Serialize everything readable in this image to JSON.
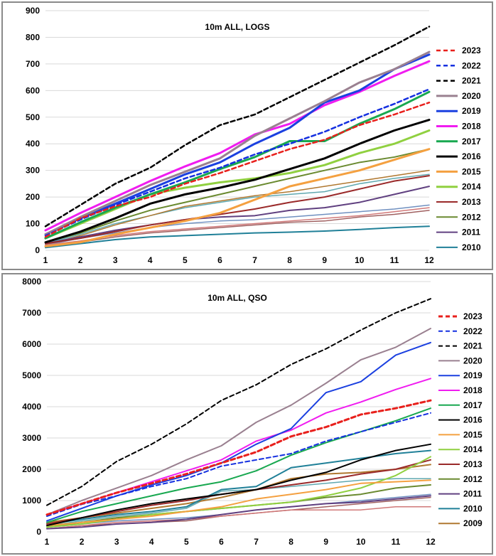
{
  "chart_data": [
    {
      "type": "line",
      "title": "10m ALL, LOGS",
      "x": [
        1,
        2,
        3,
        4,
        5,
        6,
        7,
        8,
        9,
        10,
        11,
        12
      ],
      "ylim": [
        0,
        900
      ],
      "yticks": [
        0,
        100,
        200,
        300,
        400,
        500,
        600,
        700,
        800,
        900
      ],
      "grid": "horizontal",
      "legend_position": "right",
      "series": [
        {
          "name": "2023",
          "color": "#e8201c",
          "dash": "dashed",
          "width": 2.5,
          "values": [
            50,
            120,
            165,
            200,
            250,
            290,
            335,
            380,
            415,
            470,
            510,
            555
          ]
        },
        {
          "name": "2022",
          "color": "#1530e0",
          "dash": "dashed",
          "width": 2.5,
          "values": [
            55,
            115,
            170,
            220,
            270,
            310,
            360,
            400,
            445,
            500,
            550,
            605
          ]
        },
        {
          "name": "2021",
          "color": "#000000",
          "dash": "dashed",
          "width": 2.5,
          "values": [
            90,
            170,
            250,
            310,
            395,
            470,
            510,
            575,
            640,
            705,
            770,
            840
          ]
        },
        {
          "name": "2020",
          "color": "#9a8090",
          "dash": "solid",
          "width": 3,
          "values": [
            60,
            125,
            185,
            245,
            295,
            345,
            430,
            495,
            560,
            630,
            680,
            745
          ]
        },
        {
          "name": "2019",
          "color": "#1b40e0",
          "dash": "solid",
          "width": 3,
          "values": [
            60,
            120,
            175,
            230,
            285,
            330,
            400,
            460,
            555,
            600,
            680,
            735
          ]
        },
        {
          "name": "2018",
          "color": "#f01cf0",
          "dash": "solid",
          "width": 3,
          "values": [
            75,
            140,
            200,
            260,
            315,
            365,
            435,
            475,
            545,
            595,
            655,
            710
          ]
        },
        {
          "name": "2017",
          "color": "#18a850",
          "dash": "solid",
          "width": 3,
          "values": [
            45,
            105,
            160,
            210,
            255,
            305,
            350,
            410,
            410,
            475,
            530,
            595
          ]
        },
        {
          "name": "2016",
          "color": "#000000",
          "dash": "solid",
          "width": 3,
          "values": [
            30,
            70,
            120,
            175,
            210,
            235,
            265,
            305,
            345,
            400,
            450,
            490
          ]
        },
        {
          "name": "2015",
          "color": "#f4a040",
          "dash": "solid",
          "width": 3,
          "values": [
            15,
            30,
            60,
            85,
            110,
            140,
            190,
            240,
            270,
            300,
            340,
            380
          ]
        },
        {
          "name": "2014",
          "color": "#90d040",
          "dash": "solid",
          "width": 3,
          "values": [
            45,
            100,
            155,
            210,
            235,
            255,
            270,
            290,
            320,
            365,
            400,
            450
          ]
        },
        {
          "name": "2013",
          "color": "#9a2a2a",
          "dash": "solid",
          "width": 2,
          "values": [
            25,
            45,
            70,
            95,
            115,
            135,
            155,
            180,
            200,
            230,
            260,
            280
          ]
        },
        {
          "name": "2012",
          "color": "#6a8a30",
          "dash": "solid",
          "width": 2,
          "values": [
            30,
            65,
            110,
            150,
            180,
            210,
            240,
            270,
            300,
            330,
            350,
            380
          ]
        },
        {
          "name": "2011",
          "color": "#604080",
          "dash": "solid",
          "width": 2,
          "values": [
            25,
            50,
            75,
            95,
            115,
            125,
            130,
            150,
            160,
            180,
            210,
            240
          ]
        },
        {
          "name": "2010",
          "color": "#208098",
          "dash": "solid",
          "width": 2,
          "values": [
            10,
            25,
            40,
            50,
            55,
            60,
            65,
            68,
            72,
            78,
            85,
            90
          ]
        },
        {
          "name": "",
          "color": "#d07878",
          "dash": "solid",
          "width": 1.5,
          "values": [
            20,
            35,
            55,
            70,
            80,
            90,
            100,
            110,
            120,
            130,
            145,
            160
          ]
        },
        {
          "name": "",
          "color": "#7090c0",
          "dash": "solid",
          "width": 1.5,
          "values": [
            20,
            45,
            65,
            85,
            100,
            110,
            115,
            125,
            135,
            145,
            155,
            170
          ]
        },
        {
          "name": "",
          "color": "#a06060",
          "dash": "solid",
          "width": 1.5,
          "values": [
            15,
            30,
            50,
            65,
            75,
            85,
            95,
            105,
            110,
            125,
            135,
            150
          ]
        },
        {
          "name": "",
          "color": "#b07830",
          "dash": "solid",
          "width": 1.5,
          "values": [
            20,
            55,
            95,
            130,
            165,
            185,
            205,
            220,
            240,
            260,
            280,
            300
          ]
        },
        {
          "name": "",
          "color": "#60a8b0",
          "dash": "solid",
          "width": 1.5,
          "values": [
            25,
            60,
            100,
            130,
            160,
            180,
            200,
            210,
            220,
            250,
            270,
            285
          ]
        }
      ]
    },
    {
      "type": "line",
      "title": "10m ALL, QSO",
      "x": [
        1,
        2,
        3,
        4,
        5,
        6,
        7,
        8,
        9,
        10,
        11,
        12
      ],
      "ylim": [
        0,
        8000
      ],
      "yticks": [
        0,
        1000,
        2000,
        3000,
        4000,
        5000,
        6000,
        7000,
        8000
      ],
      "grid": "horizontal",
      "legend_position": "right",
      "series": [
        {
          "name": "2023",
          "color": "#e8201c",
          "dash": "dashed",
          "width": 3,
          "values": [
            550,
            900,
            1250,
            1550,
            1850,
            2200,
            2550,
            3050,
            3350,
            3750,
            3950,
            4200
          ]
        },
        {
          "name": "2022",
          "color": "#1530e0",
          "dash": "dashed",
          "width": 2,
          "values": [
            500,
            880,
            1150,
            1450,
            1700,
            2100,
            2300,
            2500,
            2900,
            3200,
            3500,
            3800
          ]
        },
        {
          "name": "2021",
          "color": "#000000",
          "dash": "dashed",
          "width": 2,
          "values": [
            850,
            1450,
            2250,
            2800,
            3450,
            4200,
            4700,
            5350,
            5850,
            6450,
            7000,
            7450
          ]
        },
        {
          "name": "2020",
          "color": "#9a8090",
          "dash": "solid",
          "width": 2,
          "values": [
            550,
            1000,
            1400,
            1800,
            2300,
            2750,
            3500,
            4050,
            4750,
            5500,
            5900,
            6500
          ]
        },
        {
          "name": "2019",
          "color": "#1b40e0",
          "dash": "solid",
          "width": 2,
          "values": [
            350,
            750,
            1150,
            1500,
            1800,
            2200,
            2800,
            3300,
            4450,
            4800,
            5650,
            6050
          ]
        },
        {
          "name": "2018",
          "color": "#f01cf0",
          "dash": "solid",
          "width": 2,
          "values": [
            550,
            900,
            1250,
            1600,
            1950,
            2300,
            2900,
            3250,
            3800,
            4150,
            4550,
            4900
          ]
        },
        {
          "name": "2017",
          "color": "#18a850",
          "dash": "solid",
          "width": 2,
          "values": [
            300,
            650,
            900,
            1150,
            1400,
            1600,
            1950,
            2450,
            2850,
            3200,
            3550,
            3950
          ]
        },
        {
          "name": "2016",
          "color": "#000000",
          "dash": "solid",
          "width": 2,
          "values": [
            200,
            450,
            700,
            900,
            1050,
            1200,
            1350,
            1650,
            1900,
            2300,
            2600,
            2800
          ]
        },
        {
          "name": "2015",
          "color": "#f4a040",
          "dash": "solid",
          "width": 2,
          "values": [
            200,
            300,
            400,
            500,
            650,
            800,
            1050,
            1200,
            1350,
            1550,
            1600,
            1650
          ]
        },
        {
          "name": "2014",
          "color": "#90d040",
          "dash": "solid",
          "width": 2,
          "values": [
            150,
            250,
            400,
            550,
            650,
            750,
            850,
            950,
            1150,
            1400,
            1800,
            2400
          ]
        },
        {
          "name": "2013",
          "color": "#9a2a2a",
          "dash": "solid",
          "width": 2,
          "values": [
            250,
            450,
            650,
            850,
            1000,
            1200,
            1350,
            1500,
            1650,
            1850,
            2000,
            2300
          ]
        },
        {
          "name": "2012",
          "color": "#6a8a30",
          "dash": "solid",
          "width": 2,
          "values": [
            150,
            300,
            450,
            550,
            650,
            750,
            850,
            950,
            1100,
            1200,
            1400,
            1500
          ]
        },
        {
          "name": "2011",
          "color": "#604080",
          "dash": "solid",
          "width": 2,
          "values": [
            100,
            150,
            250,
            300,
            400,
            550,
            700,
            800,
            900,
            950,
            1050,
            1150
          ]
        },
        {
          "name": "2010",
          "color": "#208098",
          "dash": "solid",
          "width": 2,
          "values": [
            250,
            400,
            550,
            650,
            800,
            1350,
            1450,
            2050,
            2200,
            2350,
            2500,
            2600
          ]
        },
        {
          "name": "2009",
          "color": "#b07830",
          "dash": "solid",
          "width": 2,
          "values": [
            300,
            450,
            600,
            750,
            900,
            1100,
            1350,
            1700,
            1850,
            1900,
            2000,
            2150
          ]
        },
        {
          "name": "",
          "color": "#d07878",
          "dash": "solid",
          "width": 1.5,
          "values": [
            100,
            200,
            300,
            350,
            400,
            500,
            600,
            700,
            700,
            700,
            800,
            800
          ]
        },
        {
          "name": "",
          "color": "#7090c0",
          "dash": "solid",
          "width": 1.5,
          "values": [
            150,
            250,
            350,
            400,
            450,
            550,
            700,
            800,
            900,
            1000,
            1100,
            1200
          ]
        },
        {
          "name": "",
          "color": "#a06060",
          "dash": "solid",
          "width": 1.5,
          "values": [
            100,
            200,
            250,
            300,
            350,
            500,
            600,
            700,
            800,
            900,
            1000,
            1100
          ]
        },
        {
          "name": "",
          "color": "#60a8b0",
          "dash": "solid",
          "width": 1.5,
          "values": [
            200,
            350,
            500,
            600,
            750,
            1300,
            1350,
            1450,
            1550,
            1650,
            1700,
            1700
          ]
        }
      ]
    }
  ]
}
